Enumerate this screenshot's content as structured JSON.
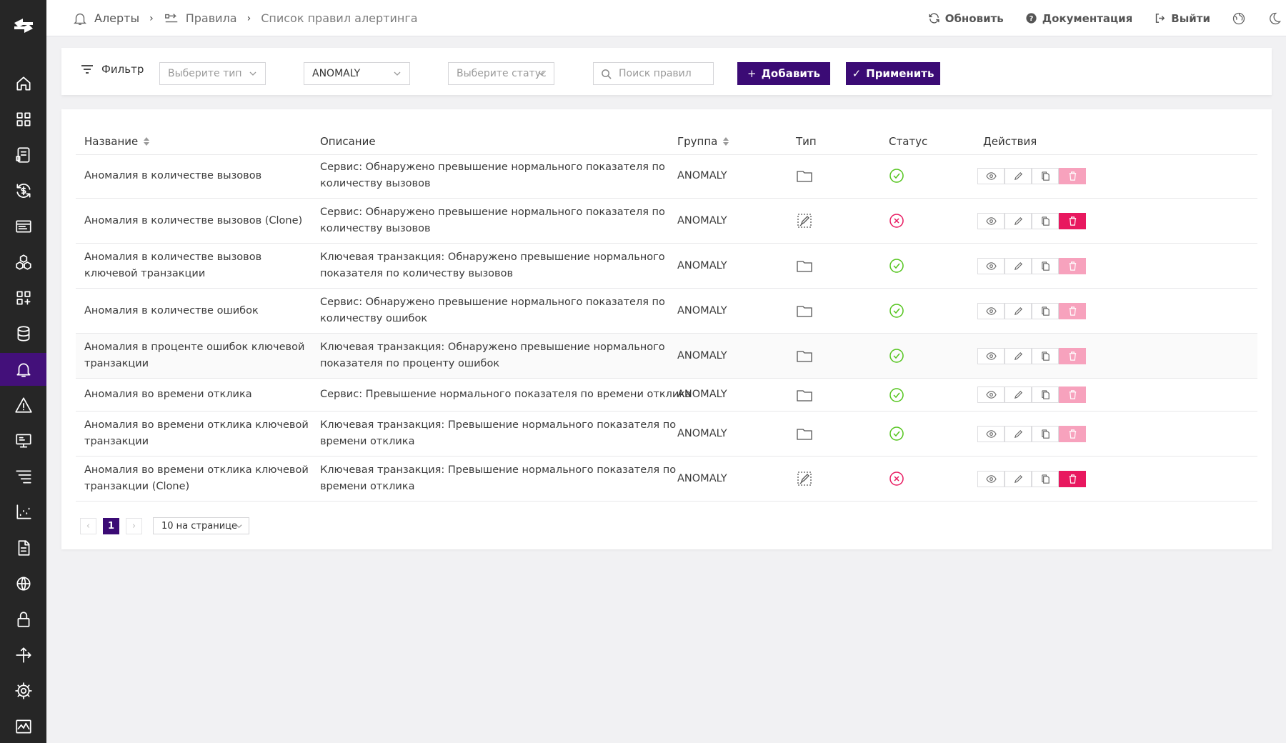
{
  "sidebar": {
    "logo_icon": "logo-icon",
    "items": [
      {
        "icon": "home-icon",
        "active": false
      },
      {
        "icon": "dashboard-grid-icon",
        "active": false
      },
      {
        "icon": "services-icon",
        "active": false
      },
      {
        "icon": "sync-dollar-icon",
        "active": false
      },
      {
        "icon": "list-card-icon",
        "active": false
      },
      {
        "icon": "hexagons-icon",
        "active": false
      },
      {
        "icon": "widgets-icon",
        "active": false
      },
      {
        "icon": "database-icon",
        "active": false
      },
      {
        "icon": "bell-icon",
        "active": true
      },
      {
        "icon": "warning-icon",
        "active": false
      },
      {
        "icon": "monitor-icon",
        "active": false
      },
      {
        "icon": "traces-icon",
        "active": false
      },
      {
        "icon": "chart-icon",
        "active": false
      },
      {
        "icon": "document-icon",
        "active": false
      },
      {
        "icon": "network-icon",
        "active": false
      },
      {
        "icon": "lock-icon",
        "active": false
      },
      {
        "icon": "arrows-icon",
        "active": false
      },
      {
        "icon": "gear-icon",
        "active": false
      },
      {
        "icon": "activity-icon",
        "active": false
      }
    ]
  },
  "header": {
    "breadcrumb": {
      "alerts": "Алерты",
      "rules": "Правила",
      "current": "Список правил алертинга"
    },
    "refresh_label": "Обновить",
    "docs_label": "Документация",
    "logout_label": "Выйти"
  },
  "filter": {
    "label": "Фильтр",
    "type_placeholder": "Выберите тип",
    "group_value": "ANOMALY",
    "status_placeholder": "Выберите статус",
    "search_placeholder": "Поиск правил",
    "add_label": "Добавить",
    "apply_label": "Применить"
  },
  "table": {
    "columns": {
      "name": "Название",
      "description": "Описание",
      "group": "Группа",
      "type": "Тип",
      "status": "Статус",
      "actions": "Действия"
    },
    "rows": [
      {
        "name": "Аномалия в количестве вызовов",
        "description": "Сервис: Обнаружено превышение нормального показателя по количеству вызовов",
        "group": "ANOMALY",
        "type": "folder-icon",
        "status": "enabled",
        "deletable": false
      },
      {
        "name": "Аномалия в количестве вызовов (Clone)",
        "description": "Сервис: Обнаружено превышение нормального показателя по количеству вызовов",
        "group": "ANOMALY",
        "type": "edit-image-icon",
        "status": "disabled",
        "deletable": true
      },
      {
        "name": "Аномалия в количестве вызовов ключевой транзакции",
        "description": "Ключевая транзакция: Обнаружено превышение нормального показателя по количеству вызовов",
        "group": "ANOMALY",
        "type": "folder-icon",
        "status": "enabled",
        "deletable": false
      },
      {
        "name": "Аномалия в количестве ошибок",
        "description": "Сервис: Обнаружено превышение нормального показателя по количеству ошибок",
        "group": "ANOMALY",
        "type": "folder-icon",
        "status": "enabled",
        "deletable": false
      },
      {
        "name": "Аномалия в проценте ошибок ключевой транзакции",
        "description": "Ключевая транзакция: Обнаружено превышение нормального показателя по проценту ошибок",
        "group": "ANOMALY",
        "type": "folder-icon",
        "status": "enabled",
        "deletable": false
      },
      {
        "name": "Аномалия во времени отклика",
        "description": "Сервис: Превышение нормального показателя по времени отклика",
        "group": "ANOMALY",
        "type": "folder-icon",
        "status": "enabled",
        "deletable": false
      },
      {
        "name": "Аномалия во времени отклика ключевой транзакции",
        "description": "Ключевая транзакция: Превышение нормального показателя по времени отклика",
        "group": "ANOMALY",
        "type": "folder-icon",
        "status": "enabled",
        "deletable": false
      },
      {
        "name": "Аномалия во времени отклика ключевой транзакции (Clone)",
        "description": "Ключевая транзакция: Превышение нормального показателя по времени отклика",
        "group": "ANOMALY",
        "type": "edit-image-icon",
        "status": "disabled",
        "deletable": true
      }
    ]
  },
  "pagination": {
    "current_page": "1",
    "page_size": "10 на странице"
  },
  "colors": {
    "primary": "#3b0b75",
    "sidebar_bg": "#262626",
    "sidebar_active": "#43107a",
    "status_ok": "#52c41a",
    "status_off": "#e8185f",
    "delete_active": "#e8185f",
    "delete_disabled": "#f7a2bd"
  }
}
